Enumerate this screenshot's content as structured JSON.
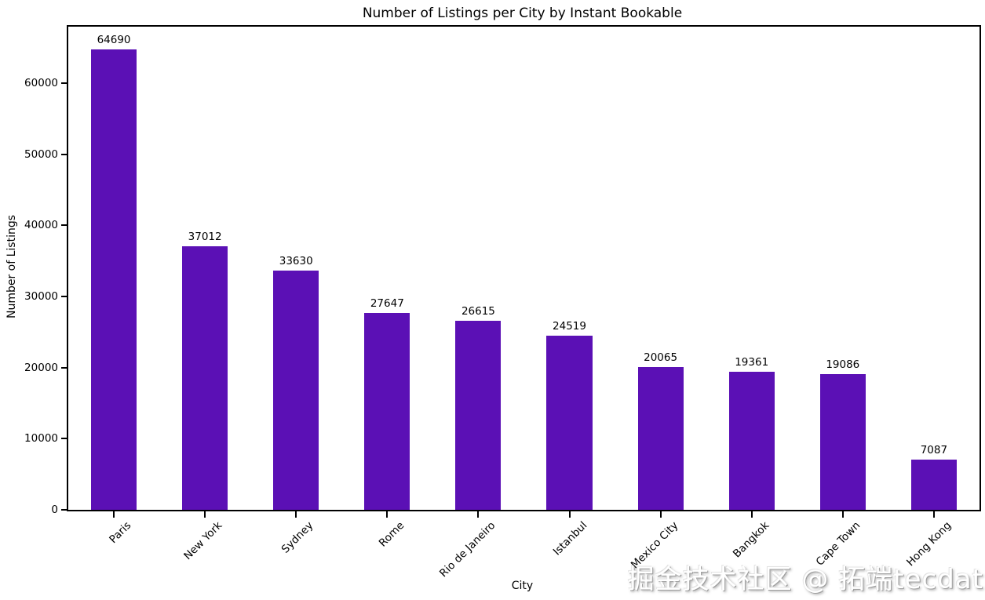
{
  "chart_data": {
    "type": "bar",
    "title": "Number of Listings per City by Instant Bookable",
    "xlabel": "City",
    "ylabel": "Number of Listings",
    "categories": [
      "Paris",
      "New York",
      "Sydney",
      "Rome",
      "Rio de Janeiro",
      "Istanbul",
      "Mexico City",
      "Bangkok",
      "Cape Town",
      "Hong Kong"
    ],
    "values": [
      64690,
      37012,
      33630,
      27647,
      26615,
      24519,
      20065,
      19361,
      19086,
      7087
    ],
    "bar_color": "#5B10B5",
    "ylim": [
      0,
      67925
    ],
    "yticks": [
      0,
      10000,
      20000,
      30000,
      40000,
      50000,
      60000
    ],
    "grid": false,
    "legend_position": "none",
    "bar_label_color": "#000000"
  },
  "watermark": {
    "text": "掘金技术社区 @ 拓端tecdat"
  }
}
